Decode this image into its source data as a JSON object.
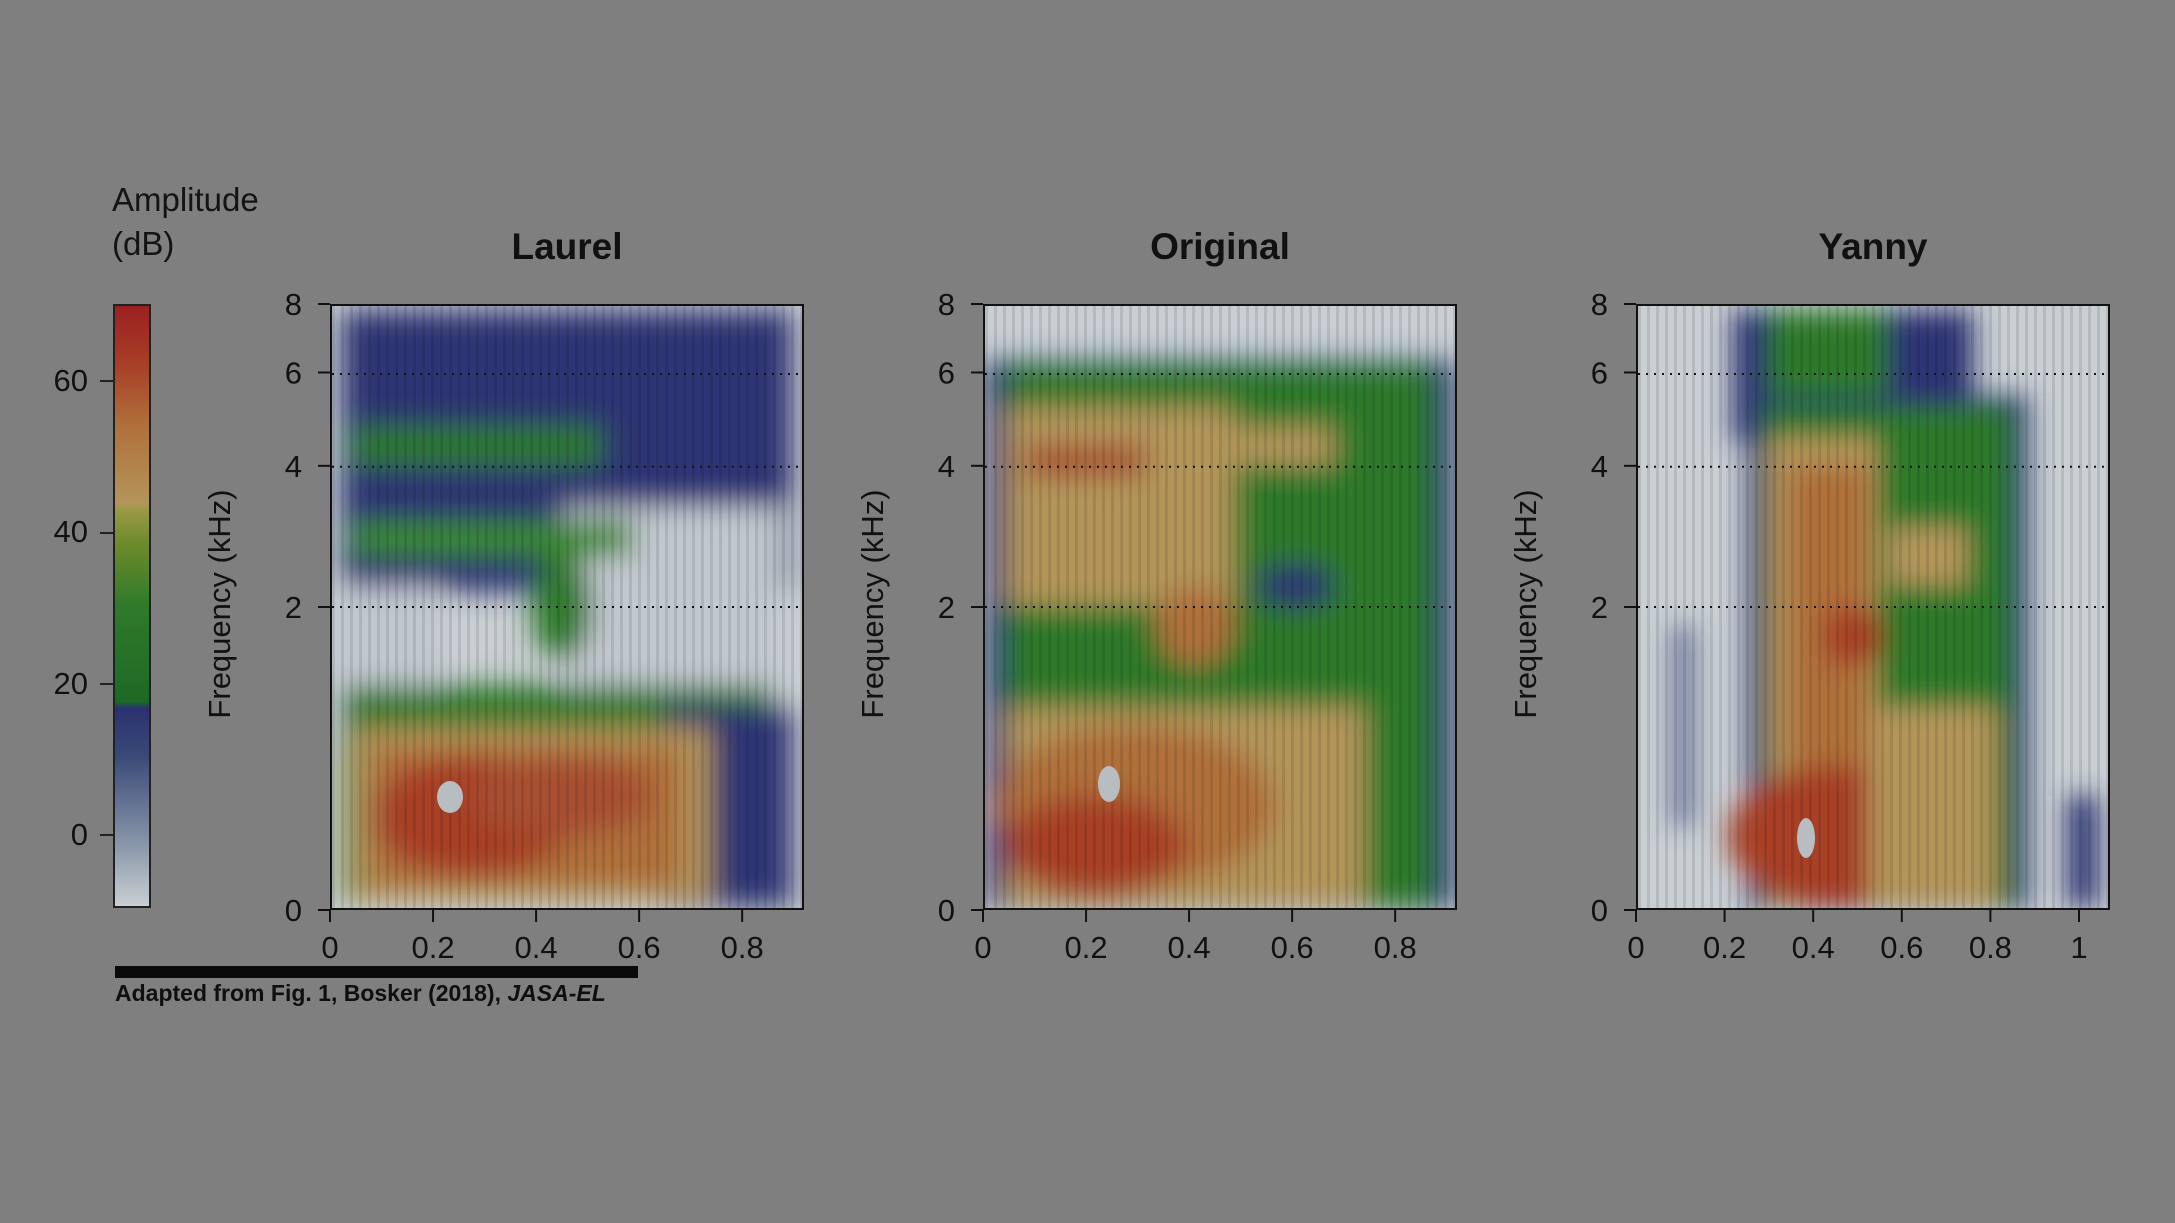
{
  "legend": {
    "title_line1": "Amplitude",
    "title_line2": "(dB)",
    "ticks": [
      "60",
      "40",
      "20",
      "0"
    ]
  },
  "footer": {
    "text": "Adapted from Fig. 1, Bosker (2018), ",
    "journal": "JASA-EL"
  },
  "colors": {
    "background": "#7f7f7f",
    "low": "#c9cfd3",
    "blue": "#2a3170",
    "green": "#2f7a2a",
    "yellow": "#b3955a",
    "red": "#9a2020"
  },
  "chart_data": [
    {
      "type": "heatmap",
      "title": "Laurel",
      "xlabel": "",
      "ylabel": "Frequency (kHz)",
      "x_ticks": [
        "0",
        "0.2",
        "0.4",
        "0.6",
        "0.8"
      ],
      "y_ticks": [
        "0",
        "2",
        "4",
        "6",
        "8"
      ],
      "xlim": [
        0,
        0.92
      ],
      "ylim": [
        0,
        8
      ],
      "gridlines_y": [
        2,
        4,
        6
      ]
    },
    {
      "type": "heatmap",
      "title": "Original",
      "xlabel": "",
      "ylabel": "Frequency (kHz)",
      "x_ticks": [
        "0",
        "0.2",
        "0.4",
        "0.6",
        "0.8"
      ],
      "y_ticks": [
        "0",
        "2",
        "4",
        "6",
        "8"
      ],
      "xlim": [
        0,
        0.92
      ],
      "ylim": [
        0,
        8
      ],
      "gridlines_y": [
        2,
        4,
        6
      ]
    },
    {
      "type": "heatmap",
      "title": "Yanny",
      "xlabel": "",
      "ylabel": "Frequency (kHz)",
      "x_ticks": [
        "0",
        "0.2",
        "0.4",
        "0.6",
        "0.8",
        "1"
      ],
      "y_ticks": [
        "0",
        "2",
        "4",
        "6",
        "8"
      ],
      "xlim": [
        0,
        1.07
      ],
      "ylim": [
        0,
        8
      ],
      "gridlines_y": [
        2,
        4,
        6
      ]
    }
  ]
}
